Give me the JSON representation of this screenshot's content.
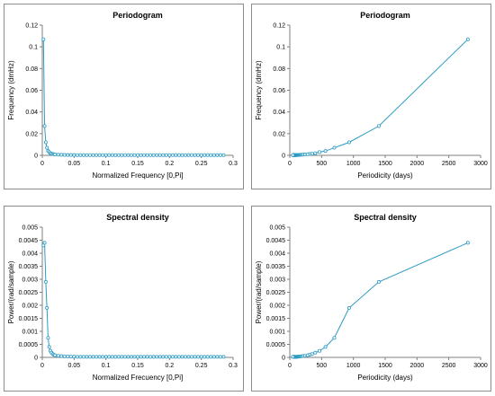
{
  "charts": [
    {
      "title": "Periodogram",
      "xlabel": "Normalized Frequency [0,Pi]",
      "ylabel": "Frequency (dmHz)",
      "x_ticks": [
        "0",
        "0.05",
        "0.1",
        "0.15",
        "0.2",
        "0.25",
        "0.3"
      ],
      "y_ticks": [
        "0",
        "0.02",
        "0.04",
        "0.06",
        "0.08",
        "0.1",
        "0.12"
      ]
    },
    {
      "title": "Periodogram",
      "xlabel": "Periodicity (days)",
      "ylabel": "Frequency (dmHz)",
      "x_ticks": [
        "0",
        "500",
        "1000",
        "1500",
        "2000",
        "2500",
        "3000"
      ],
      "y_ticks": [
        "0",
        "0.02",
        "0.04",
        "0.06",
        "0.08",
        "0.1",
        "0.12"
      ]
    },
    {
      "title": "Spectral density",
      "xlabel": "Normalized Frecuency [0,Pi]",
      "ylabel": "Power/(rad/sample)",
      "x_ticks": [
        "0",
        "0.05",
        "0.1",
        "0.15",
        "0.2",
        "0.25",
        "0.3"
      ],
      "y_ticks": [
        "0",
        "0.0005",
        "0.001",
        "0.0015",
        "0.002",
        "0.0025",
        "0.003",
        "0.0035",
        "0.004",
        "0.0045",
        "0.005"
      ]
    },
    {
      "title": "Spectral density",
      "xlabel": "Periodicity (days)",
      "ylabel": "Power/(rad/sample)",
      "x_ticks": [
        "0",
        "500",
        "1000",
        "1500",
        "2000",
        "2500",
        "3000"
      ],
      "y_ticks": [
        "0",
        "0.0005",
        "0.001",
        "0.0015",
        "0.002",
        "0.0025",
        "0.003",
        "0.0035",
        "0.004",
        "0.0045",
        "0.005"
      ]
    }
  ],
  "chart_data": [
    {
      "type": "line",
      "title": "Periodogram",
      "xlabel": "Normalized Frequency [0,Pi]",
      "ylabel": "Frequency (dmHz)",
      "xlim": [
        0,
        0.3
      ],
      "ylim": [
        0,
        0.12
      ],
      "grid": false,
      "series": [
        {
          "x": [
            0.0018,
            0.0036,
            0.0055,
            0.0073,
            0.0091,
            0.0109,
            0.0127,
            0.0145,
            0.0164,
            0.0182,
            0.02,
            0.025,
            0.03,
            0.035,
            0.04,
            0.045,
            0.05,
            0.055,
            0.06,
            0.065,
            0.07,
            0.075,
            0.08,
            0.085,
            0.09,
            0.095,
            0.1,
            0.105,
            0.11,
            0.115,
            0.12,
            0.125,
            0.13,
            0.135,
            0.14,
            0.145,
            0.15,
            0.155,
            0.16,
            0.165,
            0.17,
            0.175,
            0.18,
            0.185,
            0.19,
            0.195,
            0.2,
            0.205,
            0.21,
            0.215,
            0.22,
            0.225,
            0.23,
            0.235,
            0.24,
            0.245,
            0.25,
            0.255,
            0.26,
            0.265,
            0.27,
            0.275,
            0.28,
            0.285
          ],
          "y": [
            0.107,
            0.027,
            0.012,
            0.007,
            0.004,
            0.003,
            0.002,
            0.0015,
            0.0012,
            0.001,
            0.0008,
            0.0006,
            0.0005,
            0.0004,
            0.0003,
            0.0003,
            0.0003,
            0.0002,
            0.0002,
            0.0002,
            0.0002,
            0.0002,
            0.0002,
            0.0002,
            0.0002,
            0.0002,
            0.0002,
            0.0002,
            0.0002,
            0.0002,
            0.0002,
            0.0002,
            0.0002,
            0.0002,
            0.0002,
            0.0002,
            0.0002,
            0.0002,
            0.0002,
            0.0002,
            0.0002,
            0.0002,
            0.0002,
            0.0002,
            0.0002,
            0.0002,
            0.0002,
            0.0002,
            0.0002,
            0.0002,
            0.0002,
            0.0002,
            0.0002,
            0.0002,
            0.0002,
            0.0002,
            0.0002,
            0.0002,
            0.0002,
            0.0002,
            0.0002,
            0.0002,
            0.0002,
            0.0002
          ],
          "color": "#2e9bc4"
        }
      ]
    },
    {
      "type": "line",
      "title": "Periodogram",
      "xlabel": "Periodicity (days)",
      "ylabel": "Frequency (dmHz)",
      "xlim": [
        0,
        3000
      ],
      "ylim": [
        0,
        0.12
      ],
      "grid": false,
      "series": [
        {
          "x": [
            2800,
            1400,
            933,
            700,
            560,
            467,
            400,
            350,
            311,
            280,
            233,
            200,
            175,
            156,
            140,
            127,
            117,
            108,
            100,
            93,
            87,
            82,
            78,
            74,
            70,
            67,
            64,
            61,
            58,
            56,
            54,
            52,
            50,
            48
          ],
          "y": [
            0.107,
            0.027,
            0.012,
            0.007,
            0.004,
            0.003,
            0.002,
            0.0015,
            0.0012,
            0.001,
            0.0008,
            0.0006,
            0.0005,
            0.0004,
            0.0003,
            0.0003,
            0.0003,
            0.0002,
            0.0002,
            0.0002,
            0.0002,
            0.0002,
            0.0002,
            0.0002,
            0.0002,
            0.0002,
            0.0002,
            0.0002,
            0.0002,
            0.0002,
            0.0002,
            0.0002,
            0.0002,
            0.0002
          ],
          "color": "#2e9bc4"
        }
      ]
    },
    {
      "type": "line",
      "title": "Spectral density",
      "xlabel": "Normalized Frecuency [0,Pi]",
      "ylabel": "Power/(rad/sample)",
      "xlim": [
        0,
        0.3
      ],
      "ylim": [
        0,
        0.005
      ],
      "grid": false,
      "series": [
        {
          "x": [
            0.0018,
            0.0036,
            0.0055,
            0.0073,
            0.0091,
            0.0109,
            0.0127,
            0.0145,
            0.0164,
            0.0182,
            0.02,
            0.025,
            0.03,
            0.035,
            0.04,
            0.045,
            0.05,
            0.055,
            0.06,
            0.065,
            0.07,
            0.075,
            0.08,
            0.085,
            0.09,
            0.095,
            0.1,
            0.105,
            0.11,
            0.115,
            0.12,
            0.125,
            0.13,
            0.135,
            0.14,
            0.145,
            0.15,
            0.155,
            0.16,
            0.165,
            0.17,
            0.175,
            0.18,
            0.185,
            0.19,
            0.195,
            0.2,
            0.205,
            0.21,
            0.215,
            0.22,
            0.225,
            0.23,
            0.235,
            0.24,
            0.245,
            0.25,
            0.255,
            0.26,
            0.265,
            0.27,
            0.275,
            0.28,
            0.285
          ],
          "y": [
            0.0043,
            0.0044,
            0.0029,
            0.0019,
            0.00075,
            0.0004,
            0.00025,
            0.00018,
            0.00013,
            0.0001,
            8e-05,
            6e-05,
            5e-05,
            4e-05,
            4e-05,
            3e-05,
            3e-05,
            2e-05,
            2e-05,
            2e-05,
            2e-05,
            2e-05,
            2e-05,
            2e-05,
            2e-05,
            2e-05,
            2e-05,
            2e-05,
            2e-05,
            2e-05,
            2e-05,
            2e-05,
            2e-05,
            2e-05,
            2e-05,
            2e-05,
            2e-05,
            2e-05,
            2e-05,
            2e-05,
            2e-05,
            2e-05,
            2e-05,
            2e-05,
            2e-05,
            2e-05,
            2e-05,
            2e-05,
            2e-05,
            2e-05,
            2e-05,
            2e-05,
            2e-05,
            2e-05,
            2e-05,
            2e-05,
            2e-05,
            2e-05,
            2e-05,
            2e-05,
            2e-05,
            2e-05,
            2e-05,
            2e-05
          ],
          "color": "#2e9bc4"
        }
      ]
    },
    {
      "type": "line",
      "title": "Spectral density",
      "xlabel": "Periodicity (days)",
      "ylabel": "Power/(rad/sample)",
      "xlim": [
        0,
        3000
      ],
      "ylim": [
        0,
        0.005
      ],
      "grid": false,
      "series": [
        {
          "x": [
            2800,
            1400,
            933,
            700,
            560,
            467,
            400,
            350,
            311,
            280,
            233,
            200,
            175,
            156,
            140,
            127,
            117,
            108,
            100,
            93,
            87,
            82,
            78,
            74,
            70,
            67,
            64,
            61,
            58,
            56,
            54,
            52,
            50,
            48
          ],
          "y": [
            0.0044,
            0.0029,
            0.0019,
            0.00075,
            0.0004,
            0.00025,
            0.00018,
            0.00013,
            0.0001,
            8e-05,
            6e-05,
            5e-05,
            4e-05,
            4e-05,
            3e-05,
            3e-05,
            2e-05,
            2e-05,
            2e-05,
            2e-05,
            2e-05,
            2e-05,
            2e-05,
            2e-05,
            2e-05,
            2e-05,
            2e-05,
            2e-05,
            2e-05,
            2e-05,
            2e-05,
            2e-05,
            2e-05,
            2e-05
          ],
          "color": "#2e9bc4"
        }
      ]
    }
  ]
}
